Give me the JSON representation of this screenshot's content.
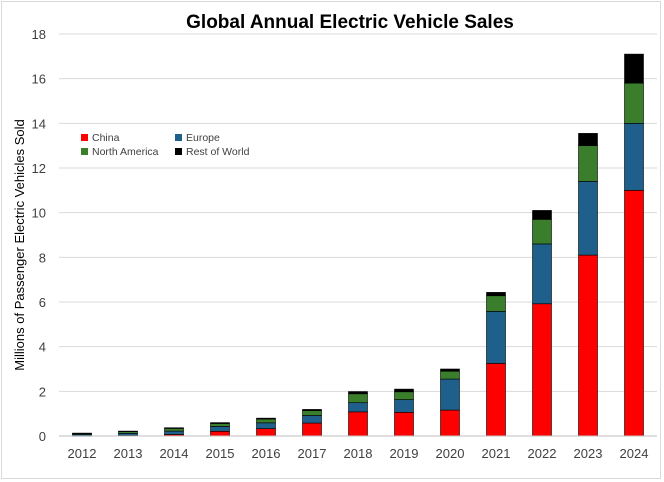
{
  "chart_data": {
    "type": "bar",
    "stacked": true,
    "title": "Global Annual Electric Vehicle Sales",
    "xlabel": "",
    "ylabel": "Millions of Passenger Electric Vehicles Sold",
    "ylim": [
      0,
      18
    ],
    "yticks": [
      "0",
      "2",
      "4",
      "6",
      "8",
      "10",
      "12",
      "14",
      "16",
      "18"
    ],
    "grid": true,
    "legend_position": "upper-left",
    "categories": [
      "2012",
      "2013",
      "2014",
      "2015",
      "2016",
      "2017",
      "2018",
      "2019",
      "2020",
      "2021",
      "2022",
      "2023",
      "2024"
    ],
    "series": [
      {
        "name": "China",
        "color": "#ff0000",
        "values": [
          0.01,
          0.02,
          0.07,
          0.21,
          0.33,
          0.58,
          1.08,
          1.06,
          1.16,
          3.25,
          5.92,
          8.1,
          11.0
        ]
      },
      {
        "name": "Europe",
        "color": "#1f5f8b",
        "values": [
          0.06,
          0.1,
          0.15,
          0.22,
          0.26,
          0.34,
          0.41,
          0.57,
          1.39,
          2.33,
          2.68,
          3.3,
          3.0
        ]
      },
      {
        "name": "North America",
        "color": "#3a7d2b",
        "values": [
          0.05,
          0.08,
          0.12,
          0.13,
          0.17,
          0.22,
          0.4,
          0.35,
          0.35,
          0.7,
          1.1,
          1.6,
          1.8
        ]
      },
      {
        "name": "Rest of World",
        "color": "#000000",
        "values": [
          0.01,
          0.02,
          0.03,
          0.04,
          0.04,
          0.05,
          0.1,
          0.12,
          0.1,
          0.15,
          0.4,
          0.55,
          1.3
        ]
      }
    ]
  }
}
